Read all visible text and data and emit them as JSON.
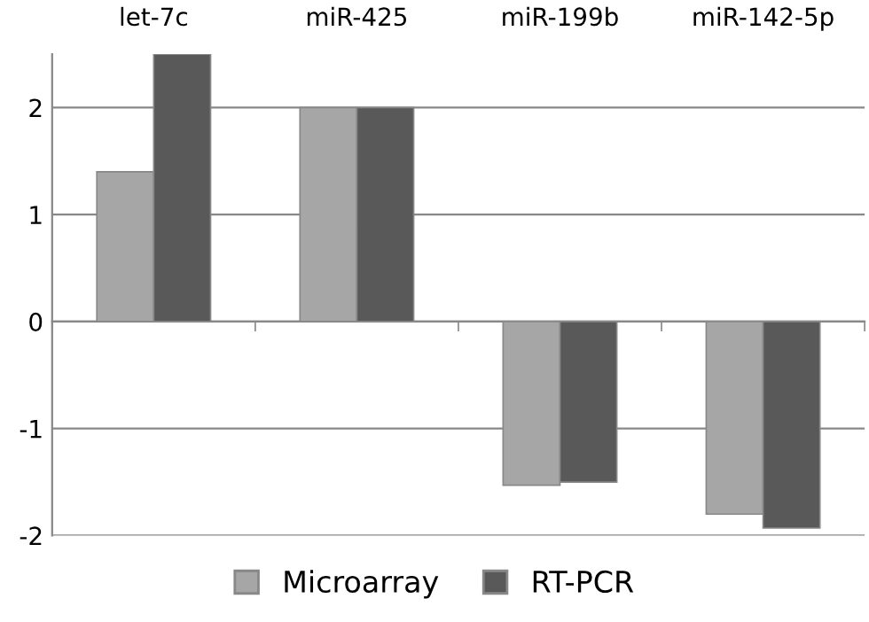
{
  "chart_data": {
    "type": "bar",
    "categories": [
      "let-7c",
      "miR-425",
      "miR-199b",
      "miR-142-5p"
    ],
    "series": [
      {
        "name": "Microarray",
        "color": "#a6a6a6",
        "values": [
          1.4,
          2.0,
          -1.53,
          -1.8
        ]
      },
      {
        "name": "RT-PCR",
        "color": "#595959",
        "values": [
          2.5,
          2.0,
          -1.5,
          -1.93
        ]
      }
    ],
    "ylim": [
      -2,
      2.5
    ],
    "yticks": [
      -2,
      -1,
      0,
      1,
      2
    ],
    "grid": "y",
    "legend": "bottom"
  }
}
